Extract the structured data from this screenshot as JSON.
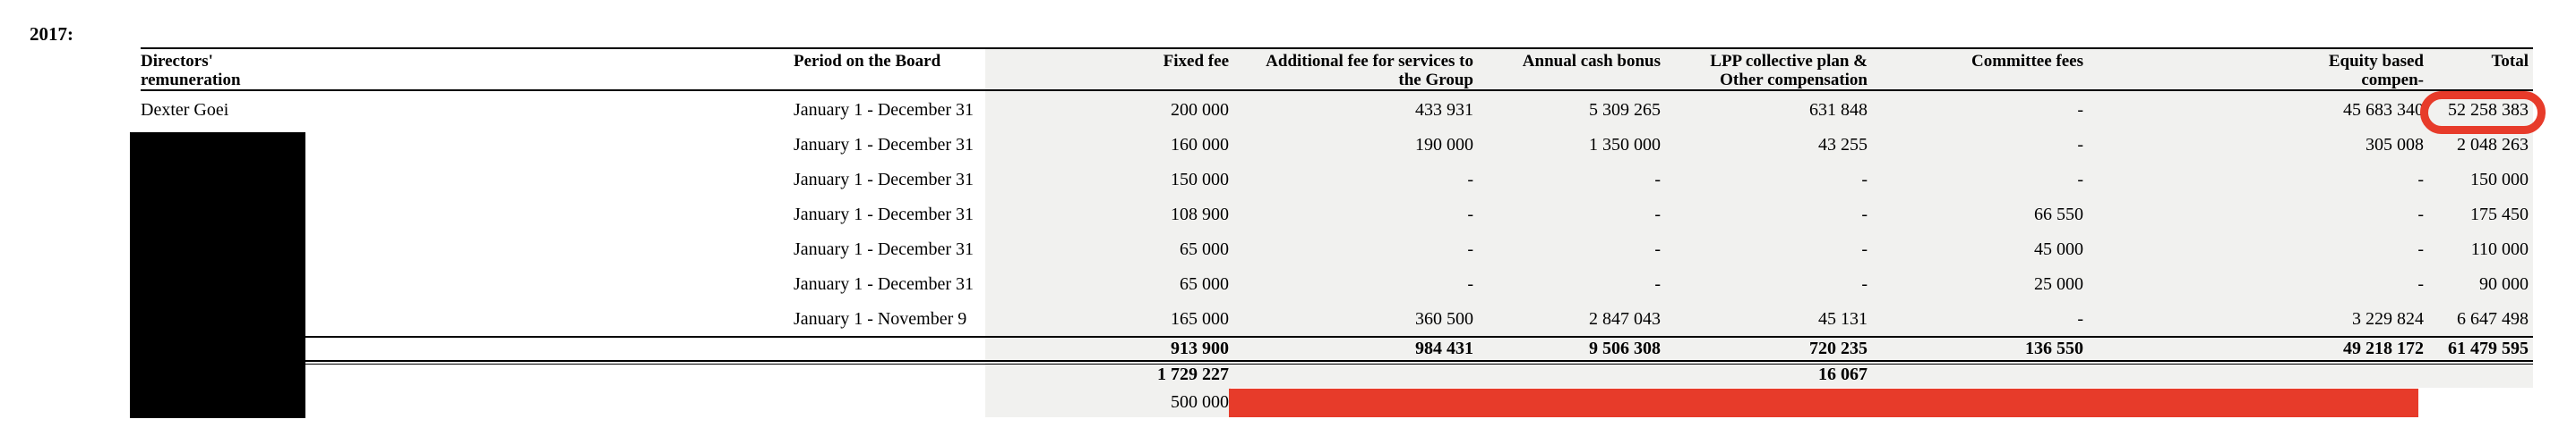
{
  "page": {
    "year_label": "2017:"
  },
  "colors": {
    "annotation_red": "#e73b2a",
    "table_shading": "#f1f1ef",
    "redaction_black": "#000000",
    "rule_black": "#000000"
  },
  "table": {
    "columns": [
      {
        "id": "name",
        "label": "Directors'\nremuneration"
      },
      {
        "id": "period",
        "label": "Period on the Board"
      },
      {
        "id": "fixed-fee",
        "label": "Fixed fee"
      },
      {
        "id": "additional-fee",
        "label": "Additional fee for services to\nthe Group"
      },
      {
        "id": "annual-cash-bonus",
        "label": "Annual cash bonus"
      },
      {
        "id": "lpp-plan",
        "label": "LPP collective plan &\nOther compensation"
      },
      {
        "id": "committee-fees",
        "label": "Committee fees"
      },
      {
        "id": "equity-based",
        "label": "Equity based\ncompen-"
      },
      {
        "id": "total",
        "label": "Total"
      }
    ],
    "rows": [
      {
        "kind": "director",
        "cells": [
          "Dexter Goei",
          "January 1 - December 31",
          "200 000",
          "433 931",
          "5 309 265",
          "631 848",
          "-",
          "45 683 340",
          "52 258 383"
        ]
      },
      {
        "kind": "director",
        "cells": [
          "",
          "January 1 - December 31",
          "160 000",
          "190 000",
          "1 350 000",
          "43 255",
          "-",
          "305 008",
          "2 048 263"
        ]
      },
      {
        "kind": "director",
        "cells": [
          "",
          "January 1 - December 31",
          "150 000",
          "-",
          "-",
          "-",
          "-",
          "-",
          "150 000"
        ]
      },
      {
        "kind": "director",
        "cells": [
          "",
          "January 1 - December 31",
          "108 900",
          "-",
          "-",
          "-",
          "66 550",
          "-",
          "175 450"
        ]
      },
      {
        "kind": "director",
        "cells": [
          "",
          "January 1 - December 31",
          "65 000",
          "-",
          "-",
          "-",
          "45 000",
          "-",
          "110 000"
        ]
      },
      {
        "kind": "director",
        "cells": [
          "",
          "January 1 - December 31",
          "65 000",
          "-",
          "-",
          "-",
          "25 000",
          "-",
          "90 000"
        ]
      },
      {
        "kind": "director",
        "cells": [
          "",
          "January 1 - November 9",
          "165 000",
          "360 500",
          "2 847 043",
          "45 131",
          "-",
          "3 229 824",
          "6 647 498"
        ]
      },
      {
        "kind": "totals",
        "cells": [
          "",
          "",
          "913 900",
          "984 431",
          "9 506 308",
          "720 235",
          "136 550",
          "49 218 172",
          "61 479 595"
        ]
      },
      {
        "kind": "subtotal",
        "cells": [
          "",
          "",
          "1 729 227",
          "",
          "",
          "16 067",
          "",
          "",
          ""
        ]
      },
      {
        "kind": "extra",
        "cells": [
          "",
          "",
          "500 000",
          "",
          "",
          "",
          "",
          "",
          ""
        ]
      }
    ]
  },
  "annotations": {
    "circled_value": "52 258 383",
    "redaction_shapes": [
      "black-box-over-director-names",
      "red-bar-over-bottom-row"
    ]
  }
}
